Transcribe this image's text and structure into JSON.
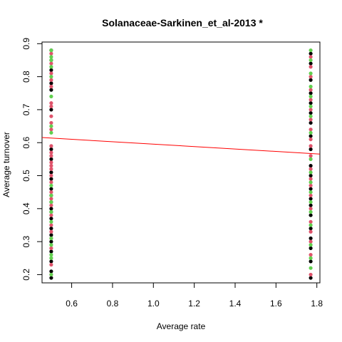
{
  "chart_data": {
    "type": "scatter",
    "title": "Solanaceae-Sarkinen_et_al-2013 *",
    "xlabel": "Average rate",
    "ylabel": "Average turnover",
    "xlim": [
      0.455,
      1.815
    ],
    "ylim": [
      0.175,
      0.905
    ],
    "x_ticks": [
      0.6,
      0.8,
      1.0,
      1.2,
      1.4,
      1.6,
      1.8
    ],
    "x_tick_labels": [
      "0.6",
      "0.8",
      "1.0",
      "1.2",
      "1.4",
      "1.6",
      "1.8"
    ],
    "y_ticks": [
      0.2,
      0.3,
      0.4,
      0.5,
      0.6,
      0.7,
      0.8,
      0.9
    ],
    "y_tick_labels": [
      "0.2",
      "0.3",
      "0.4",
      "0.5",
      "0.6",
      "0.7",
      "0.8",
      "0.9"
    ],
    "grid": false,
    "colors": {
      "black": "#000000",
      "red": "#DF536B",
      "green": "#61D04F",
      "fit": "#FF0000"
    },
    "series": [
      {
        "color_key": "black",
        "points": [
          {
            "x": 0.5,
            "y": 0.19
          },
          {
            "x": 0.5,
            "y": 0.21
          },
          {
            "x": 0.5,
            "y": 0.24
          },
          {
            "x": 0.5,
            "y": 0.27
          },
          {
            "x": 0.5,
            "y": 0.3
          },
          {
            "x": 0.5,
            "y": 0.32
          },
          {
            "x": 0.5,
            "y": 0.34
          },
          {
            "x": 0.5,
            "y": 0.37
          },
          {
            "x": 0.5,
            "y": 0.39
          },
          {
            "x": 0.5,
            "y": 0.4
          },
          {
            "x": 0.5,
            "y": 0.42
          },
          {
            "x": 0.5,
            "y": 0.44
          },
          {
            "x": 0.5,
            "y": 0.46
          },
          {
            "x": 0.5,
            "y": 0.49
          },
          {
            "x": 0.5,
            "y": 0.51
          },
          {
            "x": 0.5,
            "y": 0.55
          },
          {
            "x": 0.5,
            "y": 0.58
          },
          {
            "x": 0.5,
            "y": 0.7
          },
          {
            "x": 0.5,
            "y": 0.76
          },
          {
            "x": 0.5,
            "y": 0.78
          },
          {
            "x": 0.5,
            "y": 0.82
          },
          {
            "x": 0.5,
            "y": 0.85
          },
          {
            "x": 0.5,
            "y": 0.88
          },
          {
            "x": 1.77,
            "y": 0.19
          },
          {
            "x": 1.77,
            "y": 0.24
          },
          {
            "x": 1.77,
            "y": 0.28
          },
          {
            "x": 1.77,
            "y": 0.31
          },
          {
            "x": 1.77,
            "y": 0.34
          },
          {
            "x": 1.77,
            "y": 0.38
          },
          {
            "x": 1.77,
            "y": 0.41
          },
          {
            "x": 1.77,
            "y": 0.43
          },
          {
            "x": 1.77,
            "y": 0.46
          },
          {
            "x": 1.77,
            "y": 0.5
          },
          {
            "x": 1.77,
            "y": 0.53
          },
          {
            "x": 1.77,
            "y": 0.58
          },
          {
            "x": 1.77,
            "y": 0.62
          },
          {
            "x": 1.77,
            "y": 0.66
          },
          {
            "x": 1.77,
            "y": 0.69
          },
          {
            "x": 1.77,
            "y": 0.72
          },
          {
            "x": 1.77,
            "y": 0.75
          },
          {
            "x": 1.77,
            "y": 0.79
          },
          {
            "x": 1.77,
            "y": 0.84
          },
          {
            "x": 1.77,
            "y": 0.87
          }
        ]
      },
      {
        "color_key": "red",
        "points": [
          {
            "x": 0.5,
            "y": 0.2
          },
          {
            "x": 0.5,
            "y": 0.23
          },
          {
            "x": 0.5,
            "y": 0.28
          },
          {
            "x": 0.5,
            "y": 0.31
          },
          {
            "x": 0.5,
            "y": 0.33
          },
          {
            "x": 0.5,
            "y": 0.35
          },
          {
            "x": 0.5,
            "y": 0.38
          },
          {
            "x": 0.5,
            "y": 0.41
          },
          {
            "x": 0.5,
            "y": 0.43
          },
          {
            "x": 0.5,
            "y": 0.45
          },
          {
            "x": 0.5,
            "y": 0.48
          },
          {
            "x": 0.5,
            "y": 0.5
          },
          {
            "x": 0.5,
            "y": 0.52
          },
          {
            "x": 0.5,
            "y": 0.53
          },
          {
            "x": 0.5,
            "y": 0.54
          },
          {
            "x": 0.5,
            "y": 0.56
          },
          {
            "x": 0.5,
            "y": 0.57
          },
          {
            "x": 0.5,
            "y": 0.59
          },
          {
            "x": 0.5,
            "y": 0.64
          },
          {
            "x": 0.5,
            "y": 0.66
          },
          {
            "x": 0.5,
            "y": 0.68
          },
          {
            "x": 0.5,
            "y": 0.71
          },
          {
            "x": 0.5,
            "y": 0.72
          },
          {
            "x": 0.5,
            "y": 0.77
          },
          {
            "x": 0.5,
            "y": 0.79
          },
          {
            "x": 0.5,
            "y": 0.81
          },
          {
            "x": 0.5,
            "y": 0.84
          },
          {
            "x": 0.5,
            "y": 0.87
          },
          {
            "x": 1.77,
            "y": 0.2
          },
          {
            "x": 1.77,
            "y": 0.26
          },
          {
            "x": 1.77,
            "y": 0.3
          },
          {
            "x": 1.77,
            "y": 0.33
          },
          {
            "x": 1.77,
            "y": 0.36
          },
          {
            "x": 1.77,
            "y": 0.4
          },
          {
            "x": 1.77,
            "y": 0.44
          },
          {
            "x": 1.77,
            "y": 0.47
          },
          {
            "x": 1.77,
            "y": 0.49
          },
          {
            "x": 1.77,
            "y": 0.52
          },
          {
            "x": 1.77,
            "y": 0.56
          },
          {
            "x": 1.77,
            "y": 0.59
          },
          {
            "x": 1.77,
            "y": 0.61
          },
          {
            "x": 1.77,
            "y": 0.64
          },
          {
            "x": 1.77,
            "y": 0.67
          },
          {
            "x": 1.77,
            "y": 0.7
          },
          {
            "x": 1.77,
            "y": 0.73
          },
          {
            "x": 1.77,
            "y": 0.76
          },
          {
            "x": 1.77,
            "y": 0.8
          },
          {
            "x": 1.77,
            "y": 0.83
          },
          {
            "x": 1.77,
            "y": 0.86
          }
        ]
      },
      {
        "color_key": "green",
        "points": [
          {
            "x": 0.5,
            "y": 0.2
          },
          {
            "x": 0.5,
            "y": 0.25
          },
          {
            "x": 0.5,
            "y": 0.26
          },
          {
            "x": 0.5,
            "y": 0.29
          },
          {
            "x": 0.5,
            "y": 0.31
          },
          {
            "x": 0.5,
            "y": 0.36
          },
          {
            "x": 0.5,
            "y": 0.39
          },
          {
            "x": 0.5,
            "y": 0.42
          },
          {
            "x": 0.5,
            "y": 0.44
          },
          {
            "x": 0.5,
            "y": 0.47
          },
          {
            "x": 0.5,
            "y": 0.63
          },
          {
            "x": 0.5,
            "y": 0.65
          },
          {
            "x": 0.5,
            "y": 0.74
          },
          {
            "x": 0.5,
            "y": 0.8
          },
          {
            "x": 0.5,
            "y": 0.83
          },
          {
            "x": 0.5,
            "y": 0.85
          },
          {
            "x": 0.5,
            "y": 0.86
          },
          {
            "x": 0.5,
            "y": 0.88
          },
          {
            "x": 1.77,
            "y": 0.22
          },
          {
            "x": 1.77,
            "y": 0.25
          },
          {
            "x": 1.77,
            "y": 0.29
          },
          {
            "x": 1.77,
            "y": 0.35
          },
          {
            "x": 1.77,
            "y": 0.39
          },
          {
            "x": 1.77,
            "y": 0.42
          },
          {
            "x": 1.77,
            "y": 0.45
          },
          {
            "x": 1.77,
            "y": 0.48
          },
          {
            "x": 1.77,
            "y": 0.51
          },
          {
            "x": 1.77,
            "y": 0.55
          },
          {
            "x": 1.77,
            "y": 0.63
          },
          {
            "x": 1.77,
            "y": 0.68
          },
          {
            "x": 1.77,
            "y": 0.71
          },
          {
            "x": 1.77,
            "y": 0.74
          },
          {
            "x": 1.77,
            "y": 0.77
          },
          {
            "x": 1.77,
            "y": 0.81
          },
          {
            "x": 1.77,
            "y": 0.85
          },
          {
            "x": 1.77,
            "y": 0.88
          }
        ]
      }
    ],
    "fit_line": {
      "x": [
        0.455,
        1.815
      ],
      "y": [
        0.6155,
        0.5655
      ]
    }
  }
}
